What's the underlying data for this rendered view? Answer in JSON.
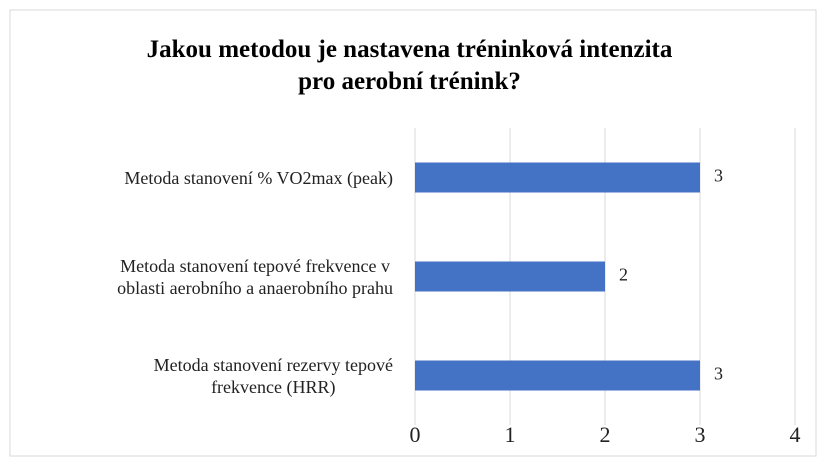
{
  "chart_data": {
    "type": "bar",
    "orientation": "horizontal",
    "title": "Jakou metodou je nastavena tréninková intenzita\npro aerobní trénink?",
    "categories": [
      "Metoda stanovení % VO2max (peak)",
      "Metoda stanovení tepové frekvence v\noblasti aerobního a anaerobního prahu",
      "Metoda stanovení rezervy tepové\nfrekvence (HRR)"
    ],
    "values": [
      3,
      2,
      3
    ],
    "color": "#4472c4",
    "xlim": [
      0,
      4
    ],
    "xticks": [
      0,
      1,
      2,
      3,
      4
    ],
    "grid": true
  }
}
